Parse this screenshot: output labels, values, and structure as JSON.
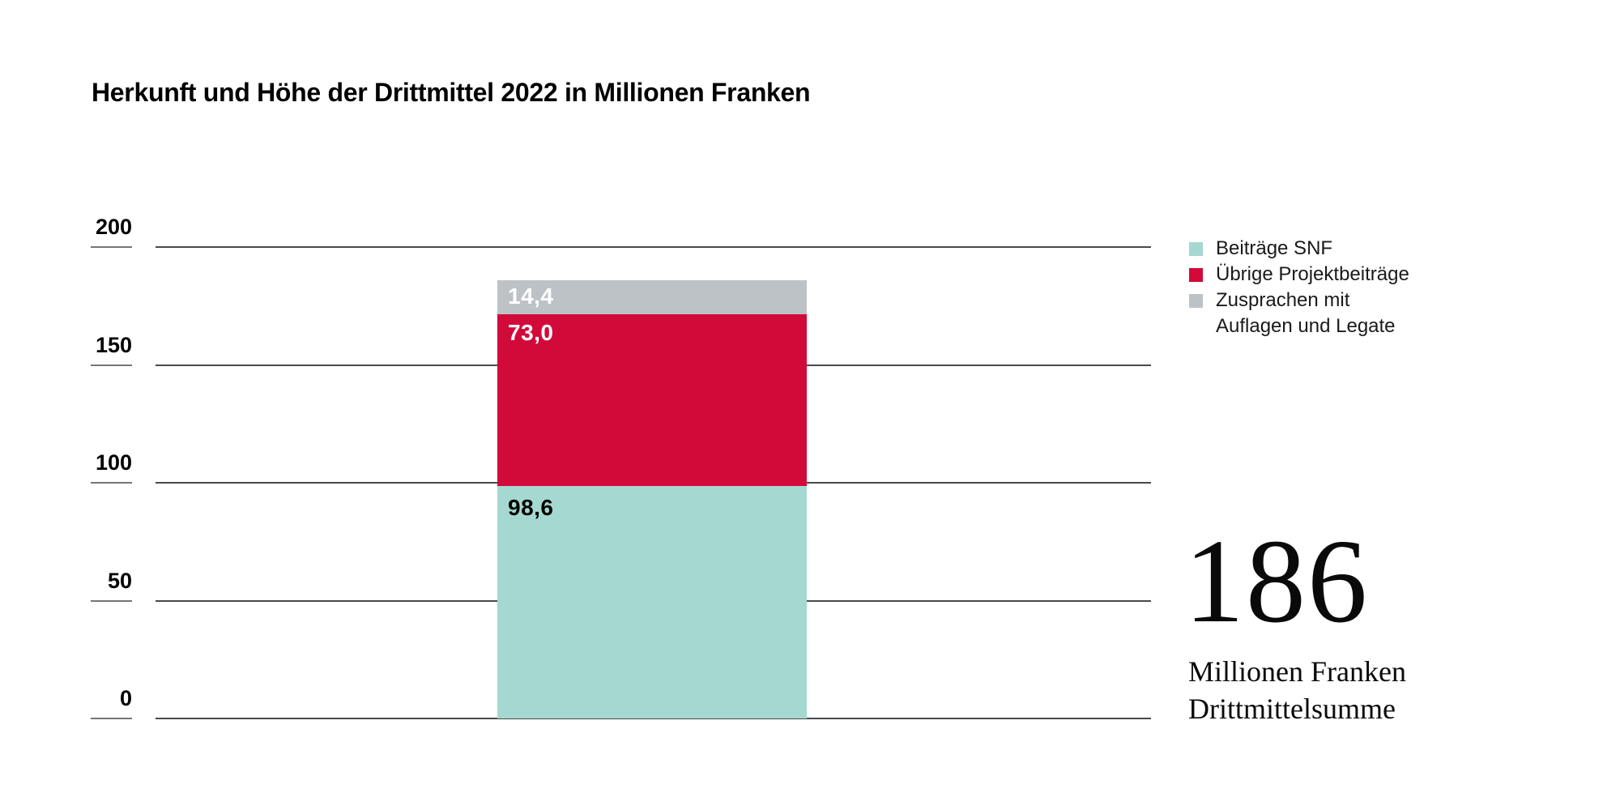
{
  "title": "Herkunft und Höhe der Drittmittel 2022 in Millionen Franken",
  "chart_data": {
    "type": "bar",
    "stacked": true,
    "title": "Herkunft und Höhe der Drittmittel 2022 in Millionen Franken",
    "series": [
      {
        "name": "Beiträge SNF",
        "value": 98.6,
        "label": "98,6",
        "color": "#a5d8d1",
        "label_color": "#000000"
      },
      {
        "name": "Übrige Projektbeiträge",
        "value": 73.0,
        "label": "73,0",
        "color": "#d20a3a",
        "label_color": "#ffffff"
      },
      {
        "name": "Zusprachen mit Auflagen und Legate",
        "value": 14.4,
        "label": "14,4",
        "color": "#bdc2c7",
        "label_color": "#ffffff"
      }
    ],
    "total": 186,
    "ylabel": "",
    "xlabel": "",
    "y_axis": {
      "ticks": [
        0,
        50,
        100,
        150,
        200
      ],
      "range": [
        0,
        200
      ]
    },
    "grid": true,
    "legend_position": "right"
  },
  "legend": {
    "items": [
      {
        "lines": [
          "Beiträge SNF"
        ],
        "color": "#a5d8d1"
      },
      {
        "lines": [
          "Übrige Projektbeiträge"
        ],
        "color": "#d20a3a"
      },
      {
        "lines": [
          "Zusprachen mit",
          "Auflagen und Legate"
        ],
        "color": "#bdc2c7"
      }
    ]
  },
  "stat": {
    "value": "186",
    "caption_line1": "Millionen Franken",
    "caption_line2": "Drittmittelsumme"
  },
  "colors": {
    "background": "#ffffff",
    "gridline": "#4a4a4a",
    "tick_underline": "#767676",
    "text": "#000000",
    "snf_teal": "#a5d8d1",
    "project_red": "#d20a3a",
    "legate_gray": "#bdc2c7"
  }
}
